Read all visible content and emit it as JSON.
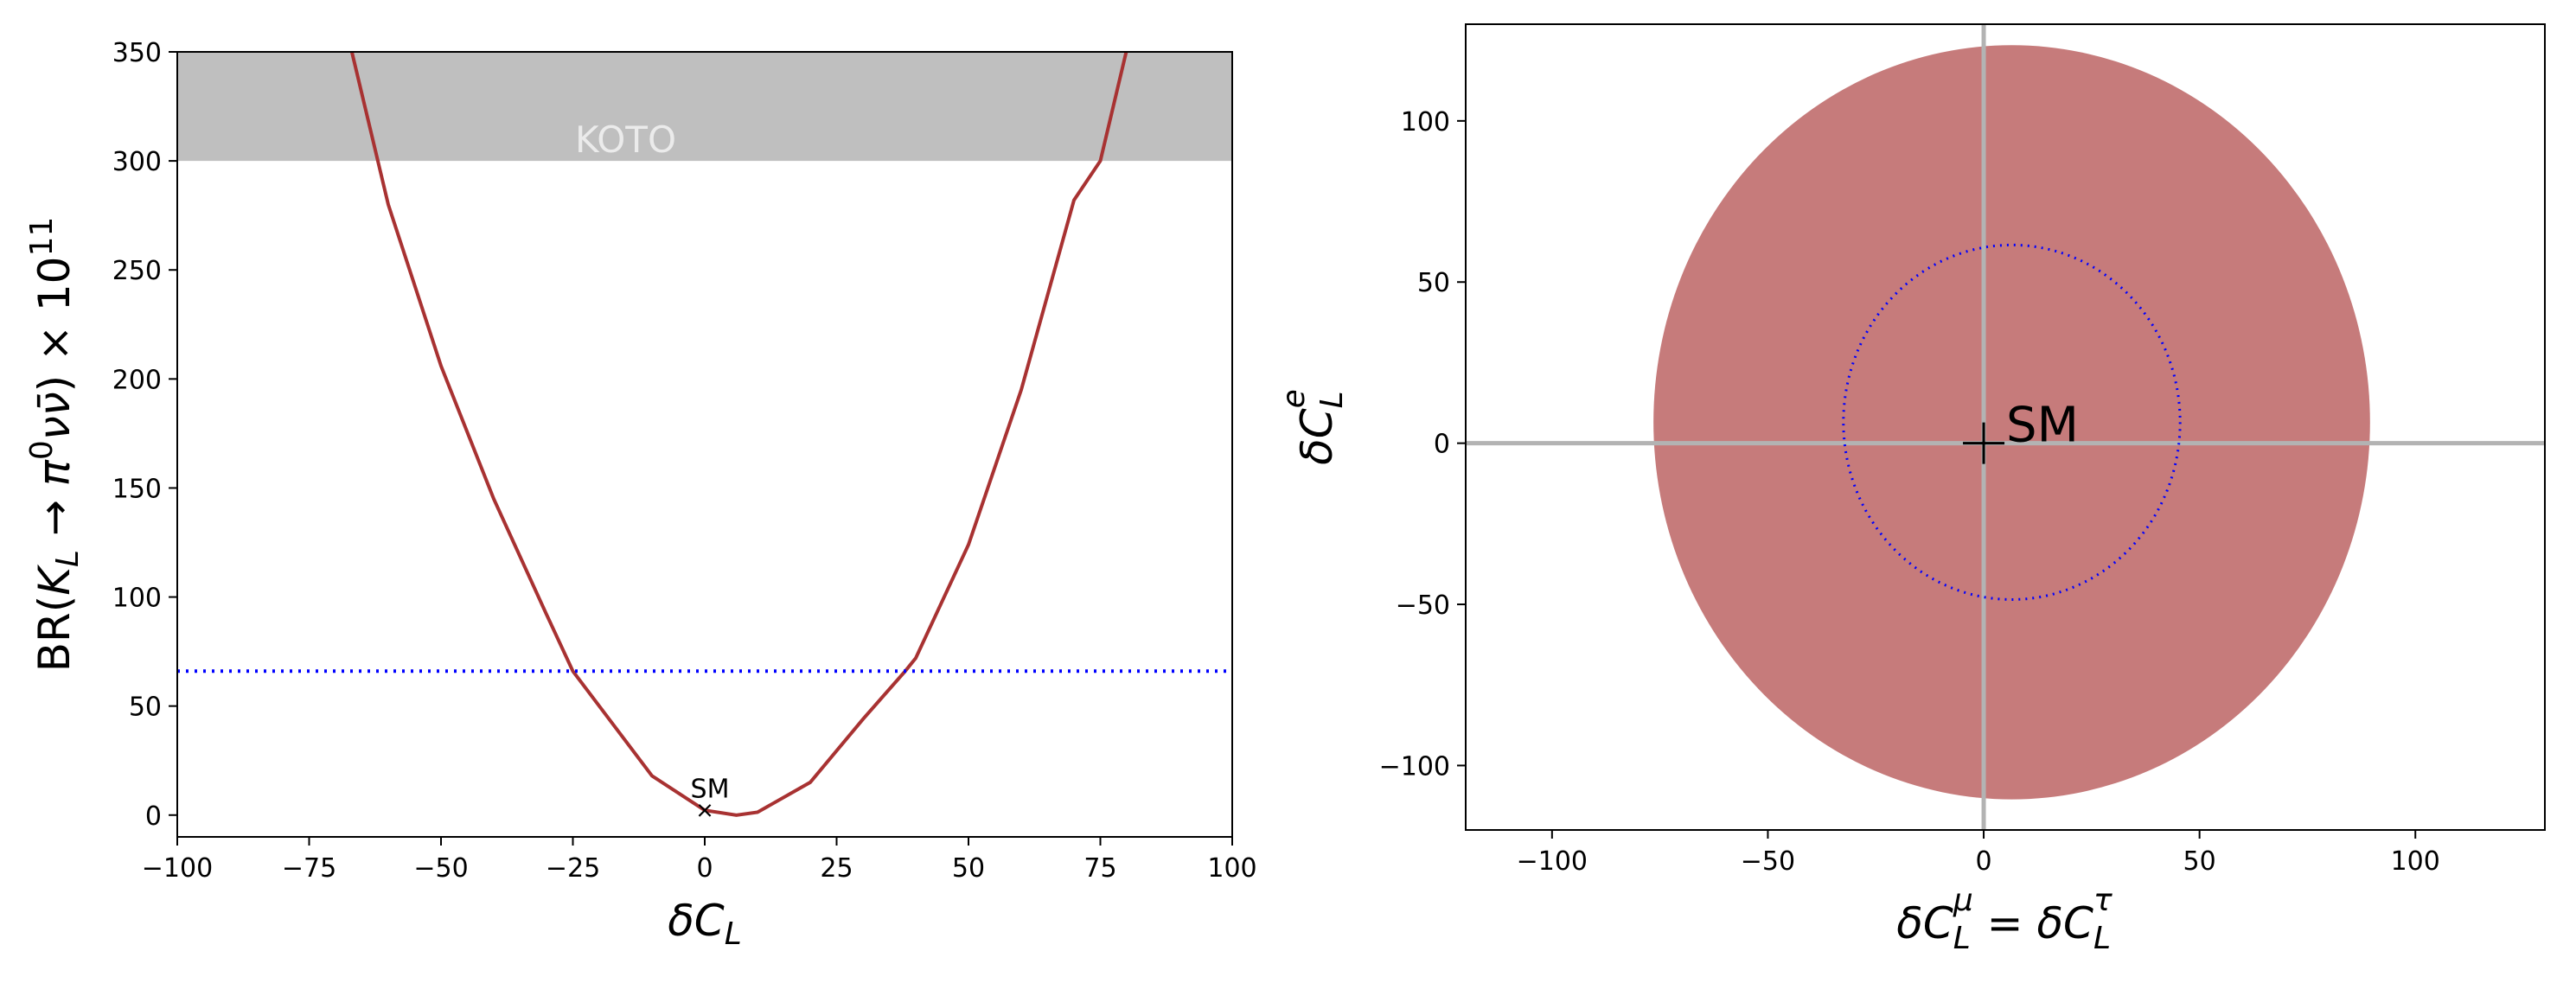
{
  "chart_data": [
    {
      "type": "line",
      "xlabel": "δC_L",
      "ylabel": "BR(K_L → π⁰νν̄) × 10¹¹",
      "xlim": [
        -100,
        100
      ],
      "ylim": [
        -10,
        350
      ],
      "xticks": [
        -100,
        -75,
        -50,
        -25,
        0,
        25,
        50,
        75,
        100
      ],
      "xtick_labels": [
        "−100",
        "−75",
        "−50",
        "−25",
        "0",
        "25",
        "50",
        "75",
        "100"
      ],
      "yticks": [
        0,
        50,
        100,
        150,
        200,
        250,
        300,
        350
      ],
      "ytick_labels": [
        "0",
        "50",
        "100",
        "150",
        "200",
        "250",
        "300",
        "350"
      ],
      "excluded_band": {
        "label": "KOTO",
        "y_from": 300,
        "y_to": 350,
        "color": "#bfbfbf"
      },
      "series": [
        {
          "style": "solid",
          "color": "#a83232",
          "x": [
            -67,
            -60,
            -50,
            -40,
            -30,
            -25,
            -20,
            -10,
            0,
            6,
            10,
            20,
            30,
            38,
            40,
            50,
            60,
            70,
            75,
            80
          ],
          "y": [
            351,
            280,
            206,
            145,
            92,
            66,
            50,
            18,
            2.2,
            0,
            1.3,
            15,
            44,
            66,
            72,
            124,
            195,
            282,
            300,
            351
          ]
        },
        {
          "style": "dotted",
          "color": "#0000ff",
          "x": [
            -100,
            100
          ],
          "y": [
            66,
            66
          ]
        }
      ],
      "points": [
        {
          "label": "SM",
          "marker": "x",
          "x": 0,
          "y": 2.5
        }
      ]
    },
    {
      "type": "scatter",
      "xlabel": "δC_L^μ = δC_L^τ",
      "ylabel": "δC_L^e",
      "xlim": [
        -120,
        130
      ],
      "ylim": [
        -120,
        130
      ],
      "xticks": [
        -100,
        -50,
        0,
        50,
        100
      ],
      "xtick_labels": [
        "−100",
        "−50",
        "0",
        "50",
        "100"
      ],
      "yticks": [
        -100,
        -50,
        0,
        50,
        100
      ],
      "ytick_labels": [
        "−100",
        "−50",
        "0",
        "50",
        "100"
      ],
      "filled_region": {
        "center": [
          6.5,
          6.5
        ],
        "radius_x": 83,
        "radius_y": 117,
        "color": "#c67b7b"
      },
      "contour": {
        "style": "dotted",
        "color": "#0000ff",
        "center": [
          6.5,
          6.5
        ],
        "radius_x": 39,
        "radius_y": 55
      },
      "reference_lines": {
        "x": 0,
        "y": 0,
        "color": "#b3b3b3"
      },
      "points": [
        {
          "label": "SM",
          "marker": "+",
          "x": 0,
          "y": 0
        }
      ]
    }
  ]
}
